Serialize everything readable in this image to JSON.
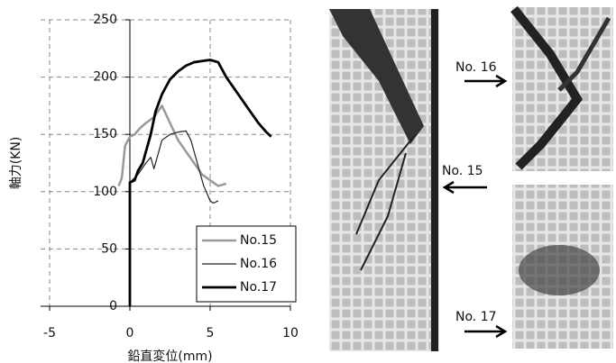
{
  "chart_data": {
    "type": "line",
    "x_label": "鉛直変位(mm)",
    "y_label": "軸力(KN)",
    "xlim": [
      -5,
      10
    ],
    "xticks": [
      -5,
      0,
      5,
      10
    ],
    "ylim": [
      0,
      250
    ],
    "yticks": [
      0,
      50,
      100,
      150,
      200,
      250
    ],
    "grid": true,
    "legend": "lower right",
    "series": [
      {
        "name": "No.15",
        "color": "#999999",
        "width": 2.5,
        "x": [
          -0.7,
          -0.5,
          -0.3,
          0,
          0.3,
          0.6,
          1,
          1.5,
          2,
          2.5,
          3,
          3.5,
          4,
          4.5,
          5,
          5.5,
          6
        ],
        "values": [
          105,
          112,
          140,
          148,
          150,
          155,
          160,
          165,
          175,
          160,
          145,
          135,
          125,
          115,
          110,
          105,
          107
        ]
      },
      {
        "name": "No.16",
        "color": "#222222",
        "width": 1.2,
        "x": [
          0,
          0.5,
          1,
          1.3,
          1.5,
          2,
          2.5,
          3,
          3.5,
          3.8,
          4.2,
          4.6,
          5,
          5.2,
          5.5
        ],
        "values": [
          108,
          115,
          125,
          130,
          120,
          145,
          150,
          152,
          153,
          145,
          125,
          105,
          92,
          90,
          92
        ]
      },
      {
        "name": "No.17",
        "color": "#000000",
        "width": 2.8,
        "x": [
          0,
          0,
          0.3,
          0.5,
          0.8,
          1,
          1.3,
          1.6,
          2,
          2.5,
          3,
          3.5,
          4,
          4.5,
          5,
          5.5,
          6,
          6.5,
          7,
          7.5,
          8,
          8.5,
          8.8
        ],
        "values": [
          0,
          108,
          110,
          118,
          125,
          135,
          150,
          170,
          185,
          198,
          205,
          210,
          213,
          214,
          215,
          213,
          200,
          190,
          180,
          170,
          160,
          152,
          148
        ]
      }
    ],
    "annotations": [
      "No. 16",
      "No. 15",
      "No. 17"
    ]
  }
}
